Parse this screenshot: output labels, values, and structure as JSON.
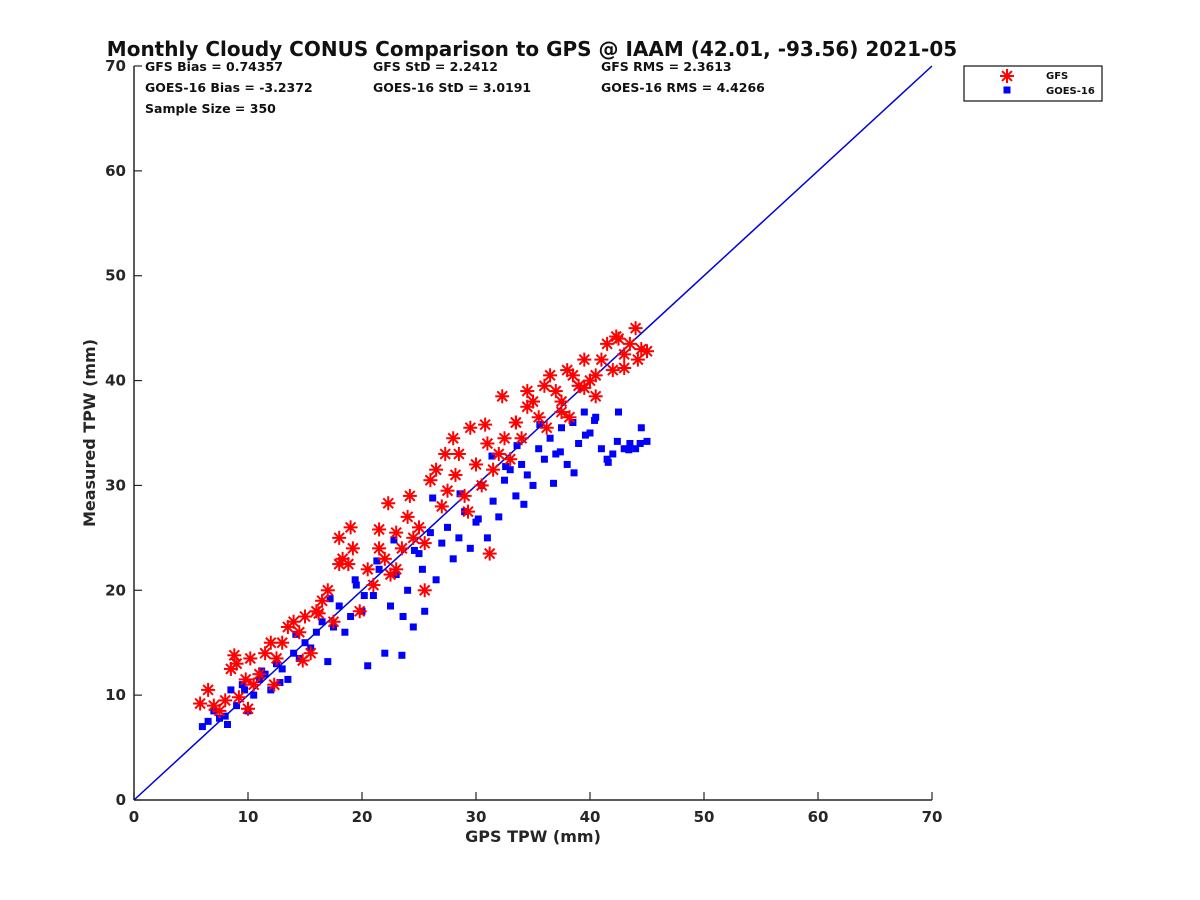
{
  "chart_data": {
    "type": "scatter",
    "title": "Monthly Cloudy CONUS Comparison to GPS @ IAAM (42.01, -93.56) 2021-05",
    "xlabel": "GPS TPW (mm)",
    "ylabel": "Measured TPW (mm)",
    "xlim": [
      0,
      70
    ],
    "ylim": [
      0,
      70
    ],
    "xticks": [
      "0",
      "10",
      "20",
      "30",
      "40",
      "50",
      "60",
      "70"
    ],
    "yticks": [
      "0",
      "10",
      "20",
      "30",
      "40",
      "50",
      "60",
      "70"
    ],
    "grid": false,
    "legend_position": "outside-top-right",
    "reference_line": {
      "x": [
        0,
        70
      ],
      "y": [
        0,
        70
      ],
      "color": "#0000DD"
    },
    "stats": {
      "gfs_bias": "GFS Bias = 0.74357",
      "goes_bias": "GOES-16 Bias = -3.2372",
      "sample_size": "Sample Size = 350",
      "gfs_std": "GFS StD = 2.2412",
      "goes_std": "GOES-16 StD = 3.0191",
      "gfs_rms": "GFS RMS = 2.3613",
      "goes_rms": "GOES-16 RMS = 4.4266"
    },
    "series": [
      {
        "name": "GFS",
        "marker": "asterisk",
        "color": "#FF0000",
        "x": [
          5.8,
          6.5,
          7.0,
          7.5,
          8.0,
          8.5,
          9.0,
          9.2,
          9.8,
          10.2,
          10.5,
          11.0,
          11.5,
          12.0,
          12.5,
          13.0,
          13.5,
          14.0,
          14.5,
          15.0,
          15.5,
          16.0,
          16.5,
          17.0,
          17.5,
          18.0,
          18.3,
          18.8,
          19.2,
          19.8,
          20.5,
          21.0,
          21.5,
          22.0,
          22.5,
          23.0,
          23.5,
          24.0,
          24.5,
          25.0,
          25.5,
          26.0,
          26.5,
          27.0,
          27.5,
          28.0,
          28.5,
          29.0,
          29.5,
          30.0,
          30.5,
          31.0,
          31.5,
          32.0,
          32.5,
          33.0,
          33.5,
          34.0,
          34.5,
          35.0,
          35.5,
          36.0,
          36.5,
          37.0,
          37.5,
          38.0,
          38.5,
          39.0,
          39.5,
          40.0,
          40.5,
          41.0,
          41.5,
          42.0,
          42.5,
          43.0,
          43.5,
          44.0,
          44.5,
          45.0,
          8.8,
          10.0,
          12.3,
          14.8,
          16.2,
          18.0,
          19.0,
          21.5,
          22.3,
          23.0,
          24.2,
          25.5,
          27.3,
          28.2,
          29.3,
          30.8,
          31.2,
          32.3,
          33.5,
          34.5,
          36.2,
          37.5,
          38.2,
          39.5,
          40.5,
          42.3,
          43.0,
          44.2
        ],
        "y": [
          9.2,
          10.5,
          9.0,
          8.5,
          9.5,
          12.5,
          13.0,
          9.8,
          11.5,
          13.5,
          11.0,
          12.0,
          14.0,
          15.0,
          13.5,
          15.0,
          16.5,
          17.0,
          16.0,
          17.5,
          14.0,
          18.0,
          19.0,
          20.0,
          17.0,
          25.0,
          23.0,
          22.5,
          24.0,
          18.0,
          22.0,
          20.5,
          24.0,
          23.0,
          21.5,
          25.5,
          24.0,
          27.0,
          25.0,
          26.0,
          24.5,
          30.5,
          31.5,
          28.0,
          29.5,
          34.5,
          33.0,
          29.0,
          35.5,
          32.0,
          30.0,
          34.0,
          31.5,
          33.0,
          34.5,
          32.5,
          36.0,
          34.5,
          37.5,
          38.0,
          36.5,
          39.5,
          40.5,
          39.0,
          38.0,
          41.0,
          40.5,
          39.5,
          42.0,
          40.0,
          38.5,
          42.0,
          43.5,
          41.0,
          44.0,
          42.5,
          43.5,
          45.0,
          43.0,
          42.8,
          13.8,
          8.7,
          11.0,
          13.3,
          17.8,
          22.5,
          26.0,
          25.8,
          28.3,
          22.0,
          29.0,
          20.0,
          33.0,
          31.0,
          27.5,
          35.8,
          23.5,
          38.5,
          36.0,
          39.0,
          35.5,
          37.0,
          36.5,
          39.3,
          40.5,
          44.2,
          41.2,
          42.0
        ]
      },
      {
        "name": "GOES-16",
        "marker": "square",
        "color": "#0000FF",
        "x": [
          6.0,
          6.5,
          7.0,
          7.5,
          8.0,
          8.5,
          9.0,
          9.5,
          10.0,
          10.5,
          11.0,
          11.5,
          12.0,
          12.5,
          13.0,
          13.5,
          14.0,
          14.5,
          15.0,
          15.5,
          16.0,
          16.5,
          17.0,
          17.5,
          18.0,
          18.5,
          19.0,
          19.5,
          20.0,
          20.5,
          21.0,
          21.5,
          22.0,
          22.5,
          23.0,
          23.5,
          24.0,
          24.5,
          25.0,
          25.5,
          26.0,
          26.5,
          27.0,
          27.5,
          28.0,
          28.5,
          29.0,
          29.5,
          30.0,
          30.5,
          31.0,
          31.5,
          32.0,
          32.5,
          33.0,
          33.5,
          34.0,
          34.5,
          35.0,
          35.5,
          36.0,
          36.5,
          37.0,
          37.5,
          38.0,
          38.5,
          39.0,
          39.5,
          40.0,
          40.5,
          41.0,
          41.5,
          42.0,
          42.5,
          43.0,
          43.5,
          44.0,
          44.5,
          45.0,
          8.2,
          9.7,
          11.2,
          12.8,
          14.2,
          17.2,
          19.4,
          20.2,
          21.3,
          22.8,
          23.6,
          24.6,
          25.3,
          26.2,
          28.6,
          30.2,
          31.4,
          32.6,
          33.6,
          34.2,
          35.6,
          36.8,
          37.4,
          38.6,
          39.6,
          40.4,
          41.6,
          42.4,
          43.4,
          44.4
        ],
        "y": [
          7.0,
          7.5,
          8.5,
          7.8,
          8.0,
          10.5,
          9.0,
          11.0,
          8.5,
          10.0,
          11.5,
          12.0,
          10.5,
          13.0,
          12.5,
          11.5,
          14.0,
          13.5,
          15.0,
          14.5,
          16.0,
          17.0,
          13.2,
          16.5,
          18.5,
          16.0,
          17.5,
          20.5,
          18.0,
          12.8,
          19.5,
          22.0,
          14.0,
          18.5,
          21.5,
          13.8,
          20.0,
          16.5,
          23.5,
          18.0,
          25.5,
          21.0,
          24.5,
          26.0,
          23.0,
          25.0,
          27.5,
          24.0,
          26.5,
          30.0,
          25.0,
          28.5,
          27.0,
          30.5,
          31.5,
          29.0,
          32.0,
          31.0,
          30.0,
          33.5,
          32.5,
          34.5,
          33.0,
          35.5,
          32.0,
          36.0,
          34.0,
          37.0,
          35.0,
          36.5,
          33.5,
          32.5,
          33.0,
          37.0,
          33.5,
          34.0,
          33.5,
          35.5,
          34.2,
          7.2,
          10.5,
          12.3,
          11.2,
          15.8,
          19.2,
          21.0,
          19.5,
          22.8,
          24.8,
          17.5,
          23.8,
          22.0,
          28.8,
          29.2,
          26.8,
          32.8,
          31.8,
          33.8,
          28.2,
          35.8,
          30.2,
          33.2,
          31.2,
          34.8,
          36.2,
          32.2,
          34.2,
          33.4,
          34.0
        ]
      }
    ]
  }
}
